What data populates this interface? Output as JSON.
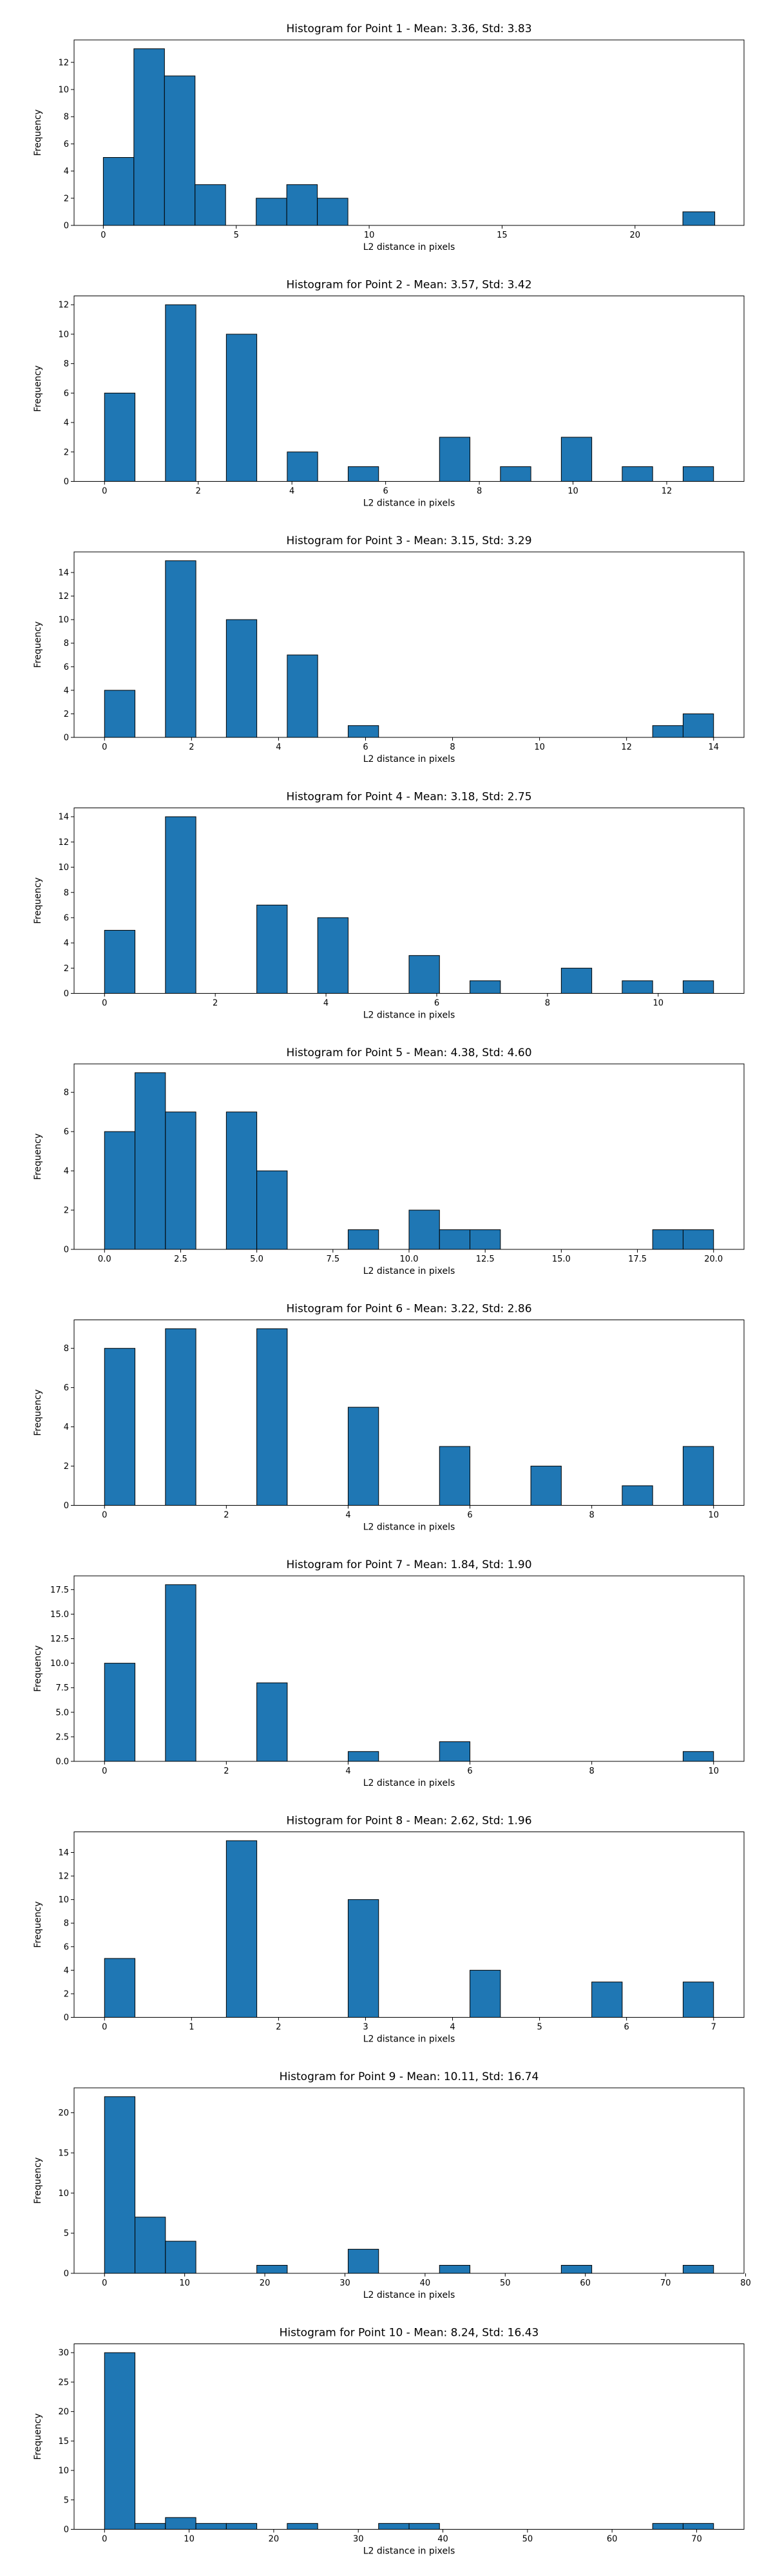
{
  "figure": {
    "background": "#ffffff",
    "bar_color": "#1f77b4",
    "edge_color": "#000000"
  },
  "chart_data": [
    {
      "type": "bar",
      "title": "Histogram for Point 1 - Mean: 3.36, Std: 3.83",
      "xlabel": "L2 distance in pixels",
      "ylabel": "Frequency",
      "xlim": [
        -1.1,
        24.1
      ],
      "ylim": [
        0,
        13.65
      ],
      "xticks": [
        0,
        5,
        10,
        15,
        20
      ],
      "xtick_labels": [
        "0",
        "5",
        "10",
        "15",
        "20"
      ],
      "yticks": [
        0,
        2,
        4,
        6,
        8,
        10,
        12
      ],
      "ytick_labels": [
        "0",
        "2",
        "4",
        "6",
        "8",
        "10",
        "12"
      ],
      "bins": [
        [
          0,
          1.15,
          5
        ],
        [
          1.15,
          2.3,
          13
        ],
        [
          2.3,
          3.45,
          11
        ],
        [
          3.45,
          4.6,
          3
        ],
        [
          5.75,
          6.9,
          2
        ],
        [
          6.9,
          8.05,
          3
        ],
        [
          8.05,
          9.2,
          2
        ],
        [
          21.8,
          23,
          1
        ]
      ]
    },
    {
      "type": "bar",
      "title": "Histogram for Point 2 - Mean: 3.57, Std: 3.42",
      "xlabel": "L2 distance in pixels",
      "ylabel": "Frequency",
      "xlim": [
        -0.65,
        13.65
      ],
      "ylim": [
        0,
        12.6
      ],
      "xticks": [
        0,
        2,
        4,
        6,
        8,
        10,
        12
      ],
      "xtick_labels": [
        "0",
        "2",
        "4",
        "6",
        "8",
        "10",
        "12"
      ],
      "yticks": [
        0,
        2,
        4,
        6,
        8,
        10,
        12
      ],
      "ytick_labels": [
        "0",
        "2",
        "4",
        "6",
        "8",
        "10",
        "12"
      ],
      "bins": [
        [
          0,
          0.65,
          6
        ],
        [
          1.3,
          1.95,
          12
        ],
        [
          2.6,
          3.25,
          10
        ],
        [
          3.9,
          4.55,
          2
        ],
        [
          5.2,
          5.85,
          1
        ],
        [
          7.15,
          7.8,
          3
        ],
        [
          8.45,
          9.1,
          1
        ],
        [
          9.75,
          10.4,
          3
        ],
        [
          11.05,
          11.7,
          1
        ],
        [
          12.35,
          13,
          1
        ]
      ]
    },
    {
      "type": "bar",
      "title": "Histogram for Point 3 - Mean: 3.15, Std: 3.29",
      "xlabel": "L2 distance in pixels",
      "ylabel": "Frequency",
      "xlim": [
        -0.7,
        14.7
      ],
      "ylim": [
        0,
        15.75
      ],
      "xticks": [
        0,
        2,
        4,
        6,
        8,
        10,
        12,
        14
      ],
      "xtick_labels": [
        "0",
        "2",
        "4",
        "6",
        "8",
        "10",
        "12",
        "14"
      ],
      "yticks": [
        0,
        2,
        4,
        6,
        8,
        10,
        12,
        14
      ],
      "ytick_labels": [
        "0",
        "2",
        "4",
        "6",
        "8",
        "10",
        "12",
        "14"
      ],
      "bins": [
        [
          0,
          0.7,
          4
        ],
        [
          1.4,
          2.1,
          15
        ],
        [
          2.8,
          3.5,
          10
        ],
        [
          4.2,
          4.9,
          7
        ],
        [
          5.6,
          6.3,
          1
        ],
        [
          12.6,
          13.3,
          1
        ],
        [
          13.3,
          14,
          2
        ]
      ]
    },
    {
      "type": "bar",
      "title": "Histogram for Point 4 - Mean: 3.18, Std: 2.75",
      "xlabel": "L2 distance in pixels",
      "ylabel": "Frequency",
      "xlim": [
        -0.55,
        11.55
      ],
      "ylim": [
        0,
        14.7
      ],
      "xticks": [
        0,
        2,
        4,
        6,
        8,
        10
      ],
      "xtick_labels": [
        "0",
        "2",
        "4",
        "6",
        "8",
        "10"
      ],
      "yticks": [
        0,
        2,
        4,
        6,
        8,
        10,
        12,
        14
      ],
      "ytick_labels": [
        "0",
        "2",
        "4",
        "6",
        "8",
        "10",
        "12",
        "14"
      ],
      "bins": [
        [
          0,
          0.55,
          5
        ],
        [
          1.1,
          1.65,
          14
        ],
        [
          2.75,
          3.3,
          7
        ],
        [
          3.85,
          4.4,
          6
        ],
        [
          5.5,
          6.05,
          3
        ],
        [
          6.6,
          7.15,
          1
        ],
        [
          8.25,
          8.8,
          2
        ],
        [
          9.35,
          9.9,
          1
        ],
        [
          10.45,
          11,
          1
        ]
      ]
    },
    {
      "type": "bar",
      "title": "Histogram for Point 5 - Mean: 4.38, Std: 4.60",
      "xlabel": "L2 distance in pixels",
      "ylabel": "Frequency",
      "xlim": [
        -1,
        21
      ],
      "ylim": [
        0,
        9.45
      ],
      "xticks": [
        0,
        2.5,
        5,
        7.5,
        10,
        12.5,
        15,
        17.5,
        20
      ],
      "xtick_labels": [
        "0.0",
        "2.5",
        "5.0",
        "7.5",
        "10.0",
        "12.5",
        "15.0",
        "17.5",
        "20.0"
      ],
      "yticks": [
        0,
        2,
        4,
        6,
        8
      ],
      "ytick_labels": [
        "0",
        "2",
        "4",
        "6",
        "8"
      ],
      "bins": [
        [
          0,
          1,
          6
        ],
        [
          1,
          2,
          9
        ],
        [
          2,
          3,
          7
        ],
        [
          4,
          5,
          7
        ],
        [
          5,
          6,
          4
        ],
        [
          8,
          9,
          1
        ],
        [
          10,
          11,
          2
        ],
        [
          11,
          12,
          1
        ],
        [
          12,
          13,
          1
        ],
        [
          18,
          19,
          1
        ],
        [
          19,
          20,
          1
        ]
      ]
    },
    {
      "type": "bar",
      "title": "Histogram for Point 6 - Mean: 3.22, Std: 2.86",
      "xlabel": "L2 distance in pixels",
      "ylabel": "Frequency",
      "xlim": [
        -0.5,
        10.5
      ],
      "ylim": [
        0,
        9.45
      ],
      "xticks": [
        0,
        2,
        4,
        6,
        8,
        10
      ],
      "xtick_labels": [
        "0",
        "2",
        "4",
        "6",
        "8",
        "10"
      ],
      "yticks": [
        0,
        2,
        4,
        6,
        8
      ],
      "ytick_labels": [
        "0",
        "2",
        "4",
        "6",
        "8"
      ],
      "bins": [
        [
          0,
          0.5,
          8
        ],
        [
          1,
          1.5,
          9
        ],
        [
          2.5,
          3,
          9
        ],
        [
          4,
          4.5,
          5
        ],
        [
          5.5,
          6,
          3
        ],
        [
          7,
          7.5,
          2
        ],
        [
          8.5,
          9,
          1
        ],
        [
          9.5,
          10,
          3
        ]
      ]
    },
    {
      "type": "bar",
      "title": "Histogram for Point 7 - Mean: 1.84, Std: 1.90",
      "xlabel": "L2 distance in pixels",
      "ylabel": "Frequency",
      "xlim": [
        -0.5,
        10.5
      ],
      "ylim": [
        0,
        18.9
      ],
      "xticks": [
        0,
        2,
        4,
        6,
        8,
        10
      ],
      "xtick_labels": [
        "0",
        "2",
        "4",
        "6",
        "8",
        "10"
      ],
      "yticks": [
        0,
        2.5,
        5,
        7.5,
        10,
        12.5,
        15,
        17.5
      ],
      "ytick_labels": [
        "0.0",
        "2.5",
        "5.0",
        "7.5",
        "10.0",
        "12.5",
        "15.0",
        "17.5"
      ],
      "bins": [
        [
          0,
          0.5,
          10
        ],
        [
          1,
          1.5,
          18
        ],
        [
          2.5,
          3,
          8
        ],
        [
          4,
          4.5,
          1
        ],
        [
          5.5,
          6,
          2
        ],
        [
          9.5,
          10,
          1
        ]
      ]
    },
    {
      "type": "bar",
      "title": "Histogram for Point 8 - Mean: 2.62, Std: 1.96",
      "xlabel": "L2 distance in pixels",
      "ylabel": "Frequency",
      "xlim": [
        -0.35,
        7.35
      ],
      "ylim": [
        0,
        15.75
      ],
      "xticks": [
        0,
        1,
        2,
        3,
        4,
        5,
        6,
        7
      ],
      "xtick_labels": [
        "0",
        "1",
        "2",
        "3",
        "4",
        "5",
        "6",
        "7"
      ],
      "yticks": [
        0,
        2,
        4,
        6,
        8,
        10,
        12,
        14
      ],
      "ytick_labels": [
        "0",
        "2",
        "4",
        "6",
        "8",
        "10",
        "12",
        "14"
      ],
      "bins": [
        [
          0,
          0.35,
          5
        ],
        [
          1.4,
          1.75,
          15
        ],
        [
          2.8,
          3.15,
          10
        ],
        [
          4.2,
          4.55,
          4
        ],
        [
          5.6,
          5.95,
          3
        ],
        [
          6.65,
          7,
          3
        ]
      ]
    },
    {
      "type": "bar",
      "title": "Histogram for Point 9 - Mean: 10.11, Std: 16.74",
      "xlabel": "L2 distance in pixels",
      "ylabel": "Frequency",
      "xlim": [
        -3.8,
        79.8
      ],
      "ylim": [
        0,
        23.1
      ],
      "xticks": [
        0,
        10,
        20,
        30,
        40,
        50,
        60,
        70,
        80
      ],
      "xtick_labels": [
        "0",
        "10",
        "20",
        "30",
        "40",
        "50",
        "60",
        "70",
        "80"
      ],
      "yticks": [
        0,
        5,
        10,
        15,
        20
      ],
      "ytick_labels": [
        "0",
        "5",
        "10",
        "15",
        "20"
      ],
      "bins": [
        [
          0,
          3.8,
          22
        ],
        [
          3.8,
          7.6,
          7
        ],
        [
          7.6,
          11.4,
          4
        ],
        [
          19,
          22.8,
          1
        ],
        [
          30.4,
          34.2,
          3
        ],
        [
          41.8,
          45.6,
          1
        ],
        [
          57,
          60.8,
          1
        ],
        [
          72.2,
          76,
          1
        ]
      ]
    },
    {
      "type": "bar",
      "title": "Histogram for Point 10 - Mean: 8.24, Std: 16.43",
      "xlabel": "L2 distance in pixels",
      "ylabel": "Frequency",
      "xlim": [
        -3.6,
        75.6
      ],
      "ylim": [
        0,
        31.5
      ],
      "xticks": [
        0,
        10,
        20,
        30,
        40,
        50,
        60,
        70
      ],
      "xtick_labels": [
        "0",
        "10",
        "20",
        "30",
        "40",
        "50",
        "60",
        "70"
      ],
      "yticks": [
        0,
        5,
        10,
        15,
        20,
        25,
        30
      ],
      "ytick_labels": [
        "0",
        "5",
        "10",
        "15",
        "20",
        "25",
        "30"
      ],
      "bins": [
        [
          0,
          3.6,
          30
        ],
        [
          3.6,
          7.2,
          1
        ],
        [
          7.2,
          10.8,
          2
        ],
        [
          10.8,
          14.4,
          1
        ],
        [
          14.4,
          18,
          1
        ],
        [
          21.6,
          25.2,
          1
        ],
        [
          32.4,
          36,
          1
        ],
        [
          36,
          39.6,
          1
        ],
        [
          64.8,
          68.4,
          1
        ],
        [
          68.4,
          72,
          1
        ]
      ]
    }
  ]
}
